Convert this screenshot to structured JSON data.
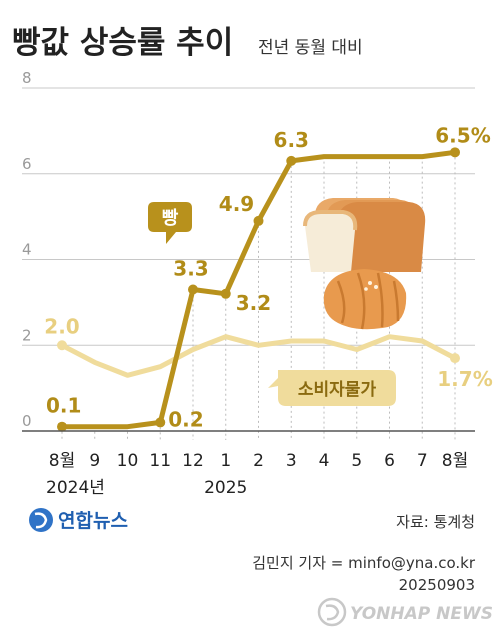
{
  "header": {
    "title": "빵값 상승률 추이",
    "subtitle": "전년 동월 대비"
  },
  "chart_data": {
    "type": "line",
    "categories": [
      "8월",
      "9",
      "10",
      "11",
      "12",
      "1",
      "2",
      "3",
      "4",
      "5",
      "6",
      "7",
      "8월"
    ],
    "year_labels": [
      {
        "label": "2024년",
        "category_index": 0
      },
      {
        "label": "2025",
        "category_index": 5
      }
    ],
    "y_ticks": [
      0,
      2,
      4,
      6,
      8
    ],
    "ylim": [
      0,
      8
    ],
    "grid": true,
    "series": [
      {
        "name": "빵",
        "color": "#b8911c",
        "values": [
          0.1,
          0.1,
          0.1,
          0.2,
          3.3,
          3.2,
          4.9,
          6.3,
          6.4,
          6.4,
          6.4,
          6.4,
          6.5
        ],
        "data_labels": [
          {
            "index": 0,
            "text": "0.1"
          },
          {
            "index": 3,
            "text": "0.2"
          },
          {
            "index": 4,
            "text": "3.3"
          },
          {
            "index": 5,
            "text": "3.2"
          },
          {
            "index": 6,
            "text": "4.9"
          },
          {
            "index": 7,
            "text": "6.3"
          },
          {
            "index": 12,
            "text": "6.5%"
          }
        ]
      },
      {
        "name": "소비자물가",
        "color": "#f0dc9c",
        "values": [
          2.0,
          1.6,
          1.3,
          1.5,
          1.9,
          2.2,
          2.0,
          2.1,
          2.1,
          1.9,
          2.2,
          2.1,
          1.7
        ],
        "data_labels": [
          {
            "index": 0,
            "text": "2.0"
          },
          {
            "index": 12,
            "text": "1.7%"
          }
        ]
      }
    ]
  },
  "footer": {
    "logo_text": "연합뉴스",
    "source": "자료: 통계청",
    "credit": "김민지 기자 = minfo@yna.co.kr",
    "date": "20250903",
    "watermark": "YONHAP NEWS"
  },
  "icons": [
    "bread-loaf-icon",
    "croissant-icon",
    "yonhap-logo-icon"
  ]
}
